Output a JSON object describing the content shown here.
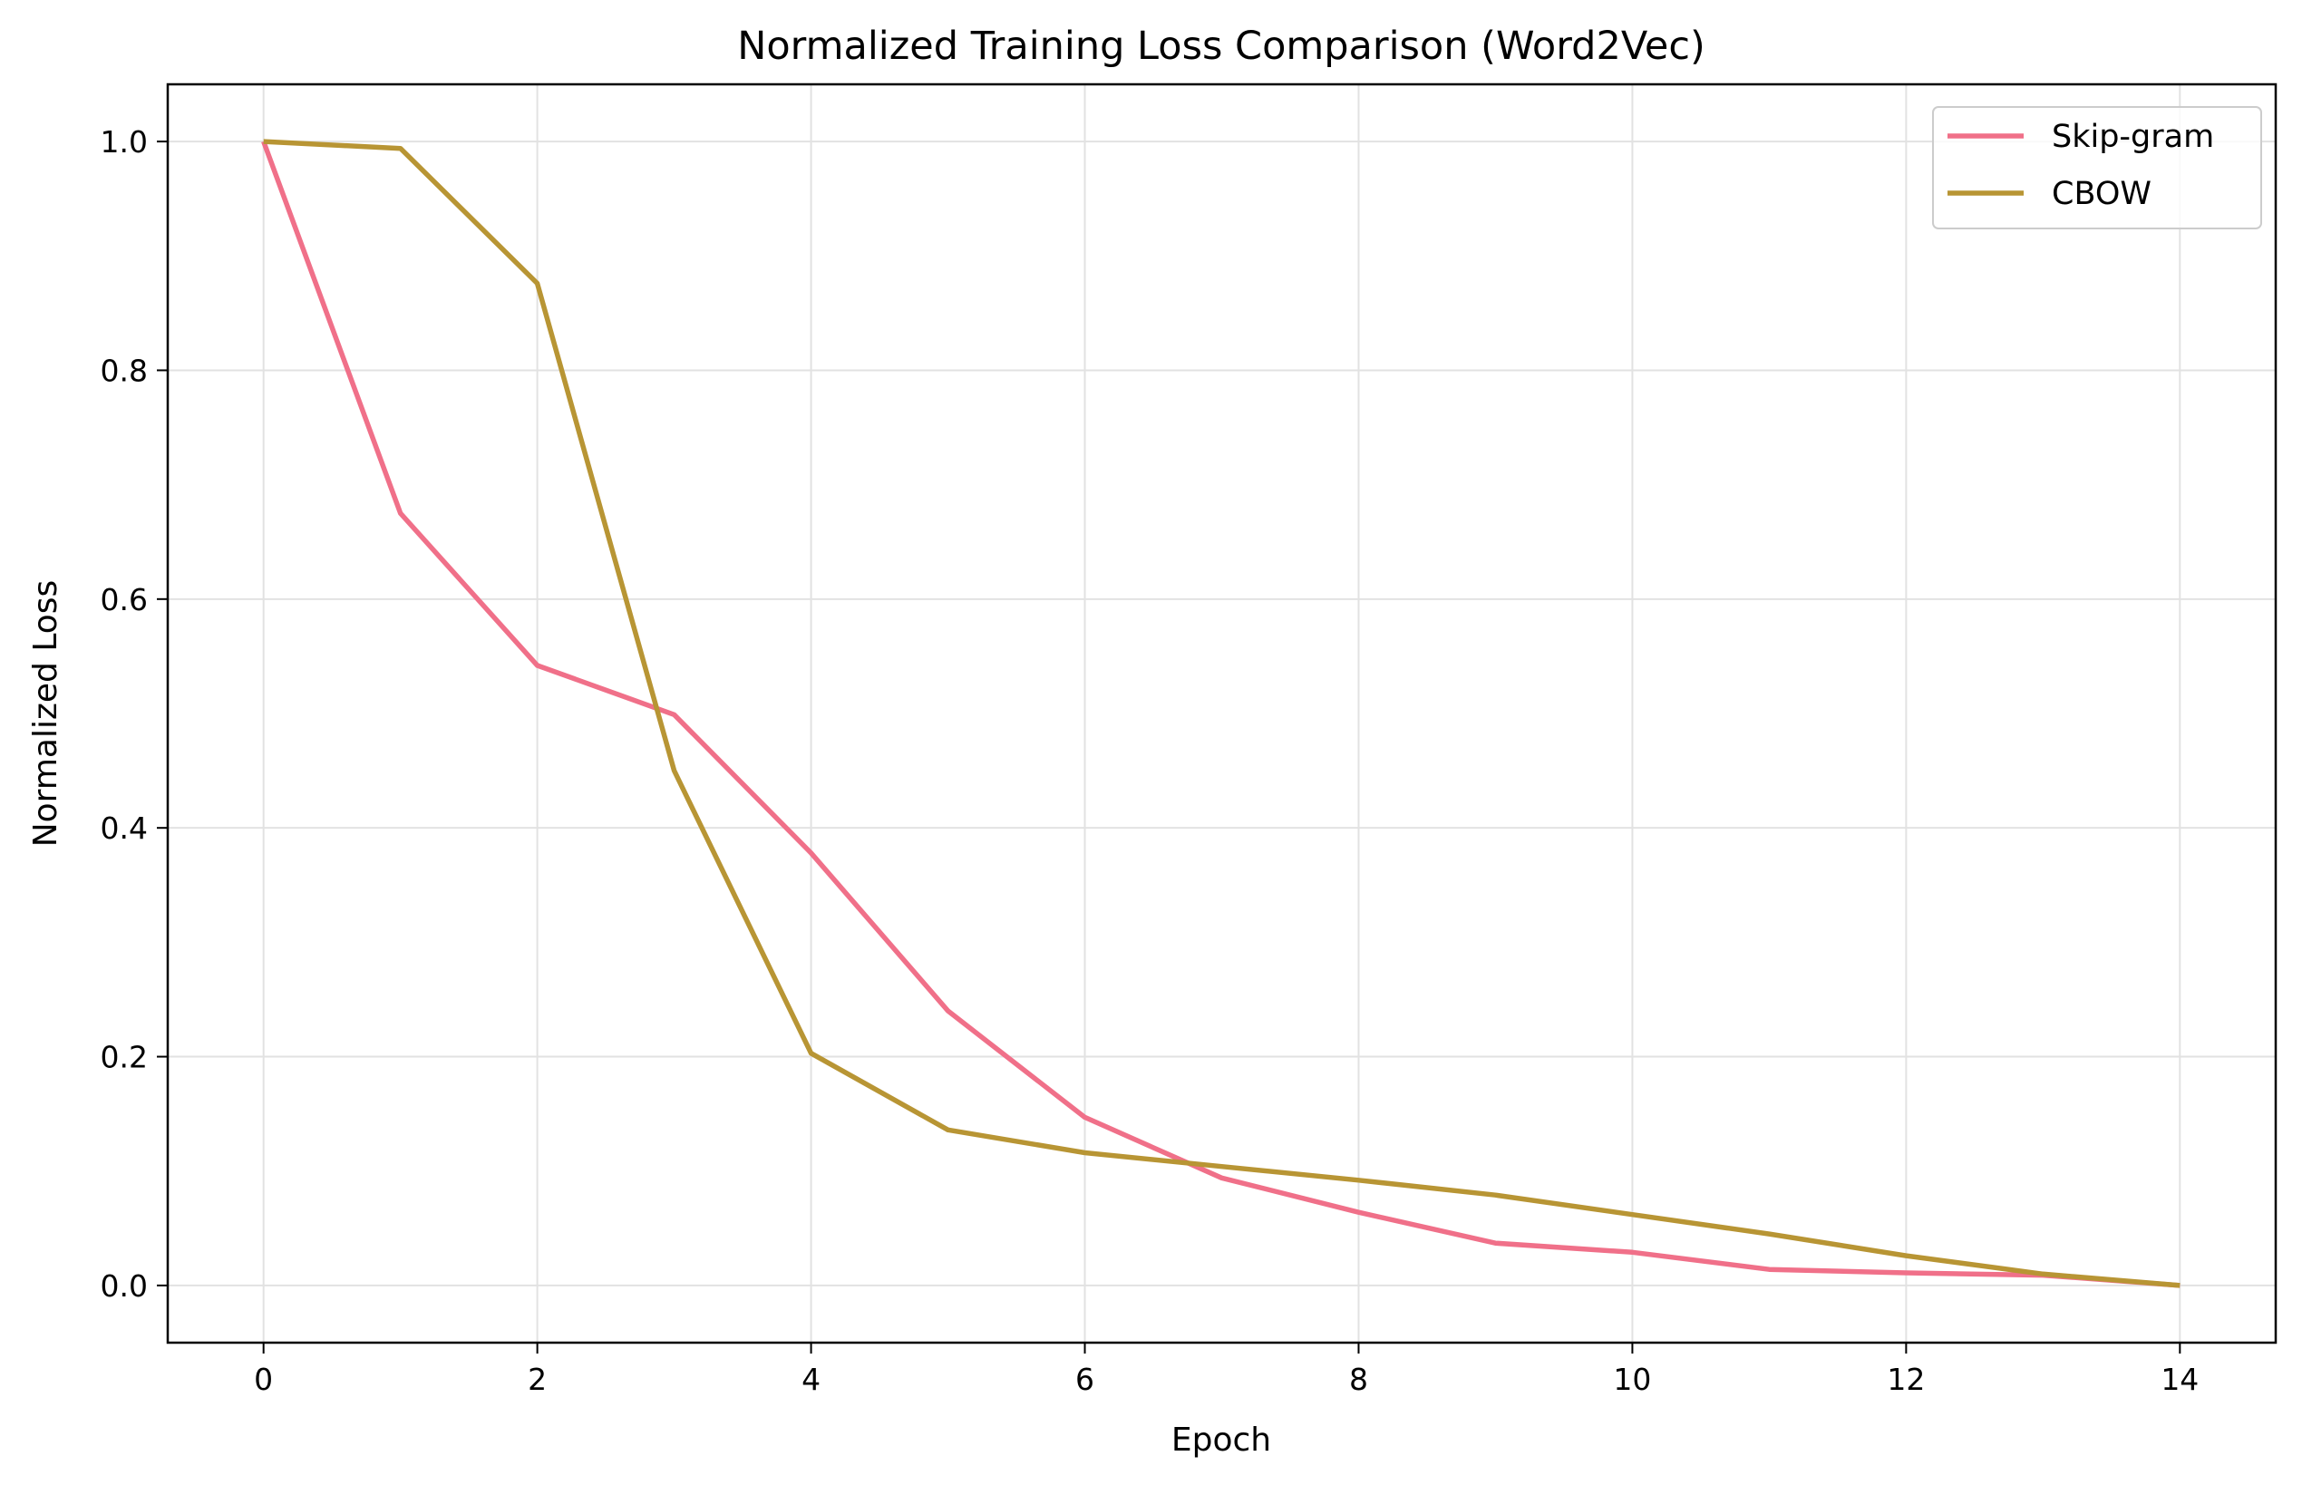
{
  "chart_data": {
    "type": "line",
    "title": "Normalized Training Loss Comparison (Word2Vec)",
    "xlabel": "Epoch",
    "ylabel": "Normalized Loss",
    "xlim": [
      -0.7,
      14.7
    ],
    "ylim": [
      -0.05,
      1.05
    ],
    "xticks": [
      0,
      2,
      4,
      6,
      8,
      10,
      12,
      14
    ],
    "xtick_labels": [
      "0",
      "2",
      "4",
      "6",
      "8",
      "10",
      "12",
      "14"
    ],
    "yticks": [
      0.0,
      0.2,
      0.4,
      0.6,
      0.8,
      1.0
    ],
    "ytick_labels": [
      "0.0",
      "0.2",
      "0.4",
      "0.6",
      "0.8",
      "1.0"
    ],
    "grid": true,
    "legend_position": "top-right",
    "x": [
      0,
      1,
      2,
      3,
      4,
      5,
      6,
      7,
      8,
      9,
      10,
      11,
      12,
      13,
      14
    ],
    "series": [
      {
        "name": "Skip-gram",
        "color": "#f07089",
        "values": [
          1.0,
          0.675,
          0.542,
          0.499,
          0.378,
          0.24,
          0.147,
          0.094,
          0.064,
          0.037,
          0.029,
          0.014,
          0.011,
          0.009,
          0.0
        ]
      },
      {
        "name": "CBOW",
        "color": "#b89534",
        "values": [
          1.0,
          0.994,
          0.876,
          0.45,
          0.203,
          0.136,
          0.116,
          0.104,
          0.092,
          0.079,
          0.062,
          0.045,
          0.026,
          0.01,
          0.0
        ]
      }
    ]
  }
}
